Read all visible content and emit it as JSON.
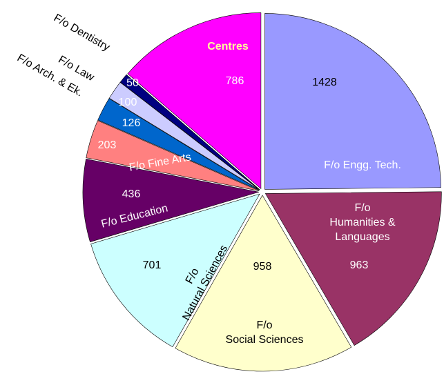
{
  "chart_data": {
    "type": "pie",
    "categories": [
      "F/o  Engg. Tech.",
      "F/o\nHumanities &\nLanguages",
      "F/o\nSocial Sciences",
      "F/o\nNatural Sciences",
      "F/o Education",
      "F/o Fine Arts",
      "F/o Arch. & Ek.",
      "F/o Law",
      "F/o Dentistry",
      "Centres"
    ],
    "values": [
      1428,
      963,
      958,
      701,
      436,
      203,
      126,
      100,
      50,
      786
    ],
    "colors": [
      "#9999ff",
      "#993366",
      "#ffffcc",
      "#ccffff",
      "#660066",
      "#ff8080",
      "#0066cc",
      "#ccccff",
      "#000080",
      "#ff00ff"
    ]
  }
}
